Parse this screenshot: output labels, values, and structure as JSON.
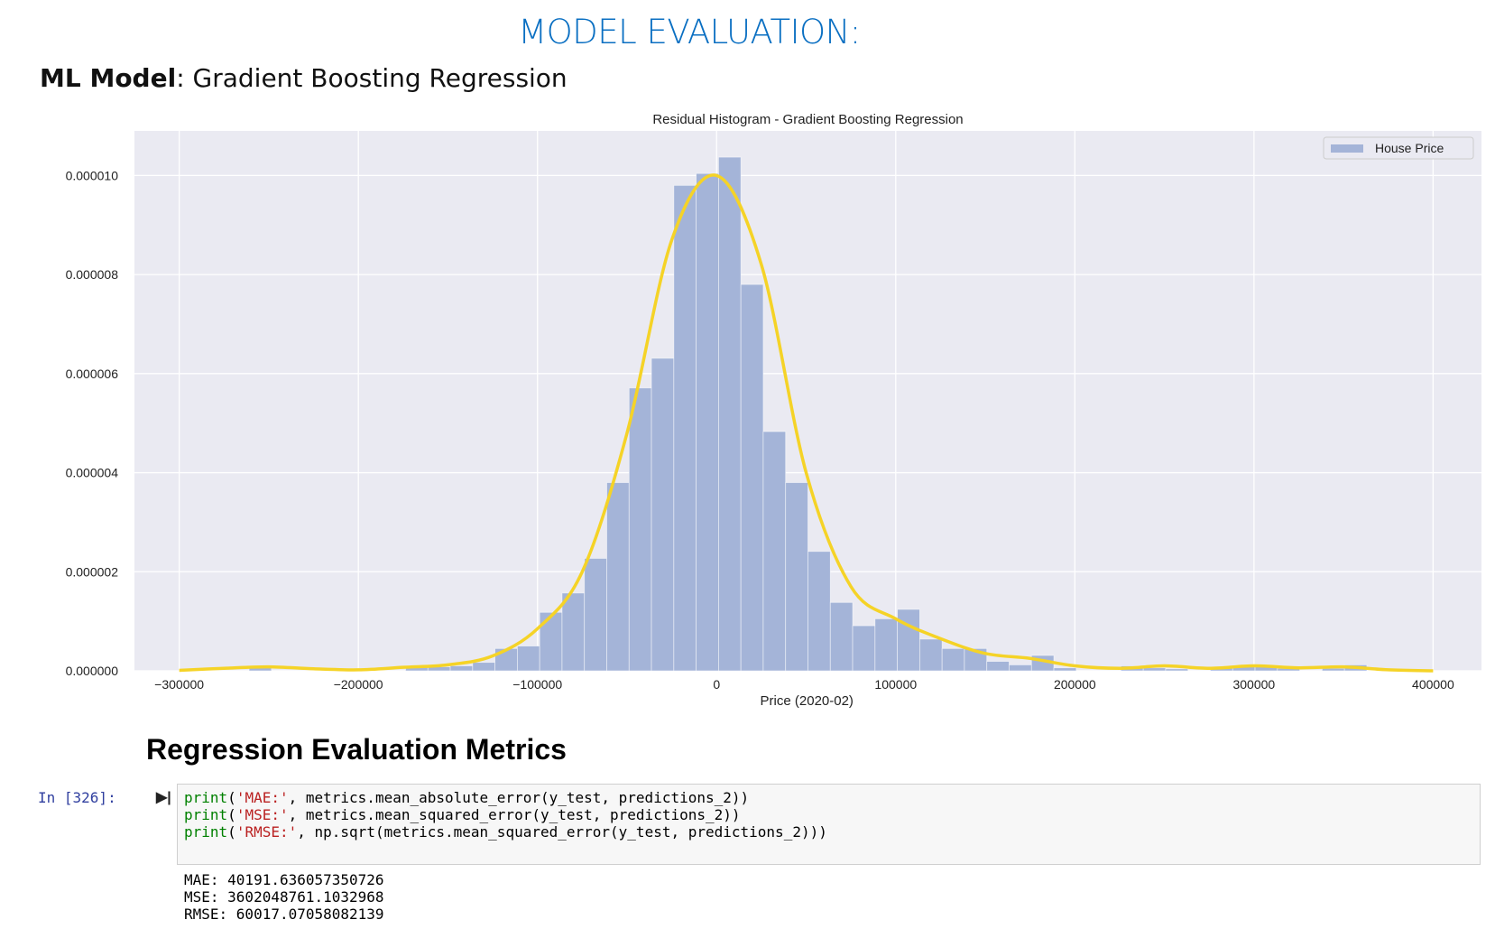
{
  "header": {
    "title": "MODEL EVALUATION:",
    "model_label": "ML Model",
    "model_value": ": Gradient Boosting Regression"
  },
  "chart_data": {
    "type": "histogram",
    "title": "Residual Histogram - Gradient Boosting Regression",
    "x_label": "Price (2020-02)",
    "bins": [
      -261000,
      -248520,
      -236040,
      -223560,
      -211080,
      -198600,
      -186120,
      -173640,
      -161160,
      -148680,
      -136200,
      -123720,
      -111240,
      -98760,
      -86280,
      -73800,
      -61320,
      -48840,
      -36360,
      -23880,
      -11400,
      1080,
      13560,
      26040,
      38520,
      51000,
      63480,
      75960,
      88440,
      100920,
      113400,
      125880,
      138360,
      150840,
      163320,
      175800,
      188280,
      200760,
      213240,
      225720,
      238200,
      250680,
      263160,
      275640,
      288120,
      300600,
      313080,
      325560,
      338040,
      350520,
      363000
    ],
    "series": [
      {
        "name": "House Price",
        "color": "#a4b4d8",
        "values": [
          1e-07,
          0,
          0,
          0,
          0,
          0,
          0,
          1e-07,
          8e-08,
          1e-07,
          1.7e-07,
          4.5e-07,
          5e-07,
          1.18e-06,
          1.57e-06,
          2.27e-06,
          3.8e-06,
          5.71e-06,
          6.31e-06,
          9.8e-06,
          1.004e-05,
          1.037e-05,
          7.8e-06,
          4.83e-06,
          3.8e-06,
          2.41e-06,
          1.38e-06,
          9.1e-07,
          1.05e-06,
          1.24e-06,
          6.4e-07,
          4.5e-07,
          4.5e-07,
          1.9e-07,
          1.2e-07,
          3.1e-07,
          6e-08,
          0,
          0,
          1e-07,
          6e-08,
          4e-08,
          0,
          6e-08,
          8e-08,
          1e-07,
          5e-08,
          0,
          5e-08,
          1.2e-07
        ]
      }
    ],
    "kde": {
      "color": "#f5d327",
      "x": [
        -300000,
        -275000,
        -250000,
        -225000,
        -200000,
        -175000,
        -150000,
        -125000,
        -100000,
        -75000,
        -50000,
        -25000,
        0,
        25000,
        50000,
        75000,
        100000,
        125000,
        150000,
        175000,
        200000,
        225000,
        250000,
        275000,
        300000,
        325000,
        350000,
        375000,
        400000
      ],
      "values": [
        1e-08,
        5e-08,
        8e-08,
        4e-08,
        2e-08,
        7e-08,
        1.2e-07,
        3e-07,
        8.5e-07,
        2e-06,
        4.8e-06,
        8.7e-06,
        1e-05,
        8.2e-06,
        4e-06,
        1.7e-06,
        1.05e-06,
        6.5e-07,
        3.5e-07,
        2.5e-07,
        1e-07,
        5e-08,
        1e-07,
        5e-08,
        1e-07,
        6e-08,
        8e-08,
        2e-08,
        0
      ]
    },
    "xlim": [
      -325000,
      427000
    ],
    "ylim": [
      0,
      1.09e-05
    ],
    "xticks": [
      {
        "value": -300000,
        "label": "−300000"
      },
      {
        "value": -200000,
        "label": "−200000"
      },
      {
        "value": -100000,
        "label": "−100000"
      },
      0,
      100000,
      200000,
      300000,
      400000
    ],
    "yticks": [
      {
        "value": 0,
        "label": "0.000000"
      },
      {
        "value": 2e-06,
        "label": "0.000002"
      },
      {
        "value": 4e-06,
        "label": "0.000004"
      },
      {
        "value": 6e-06,
        "label": "0.000006"
      },
      {
        "value": 8e-06,
        "label": "0.000008"
      },
      {
        "value": 1e-05,
        "label": "0.000010"
      }
    ],
    "grid": true,
    "legend": "upper right",
    "background": "#eaeaf2"
  },
  "section": {
    "title": "Regression Evaluation Metrics"
  },
  "code": {
    "prompt": "In [326]:",
    "lines": [
      [
        "print",
        "(",
        "'MAE:'",
        ", metrics.mean_absolute_error(y_test, predictions_2))"
      ],
      [
        "print",
        "(",
        "'MSE:'",
        ", metrics.mean_squared_error(y_test, predictions_2))"
      ],
      [
        "print",
        "(",
        "'RMSE:'",
        ", np.sqrt(metrics.mean_squared_error(y_test, predictions_2)))"
      ]
    ]
  },
  "output": {
    "lines": [
      "MAE: 40191.636057350726",
      "MSE: 3602048761.1032968",
      "RMSE: 60017.07058082139"
    ]
  }
}
